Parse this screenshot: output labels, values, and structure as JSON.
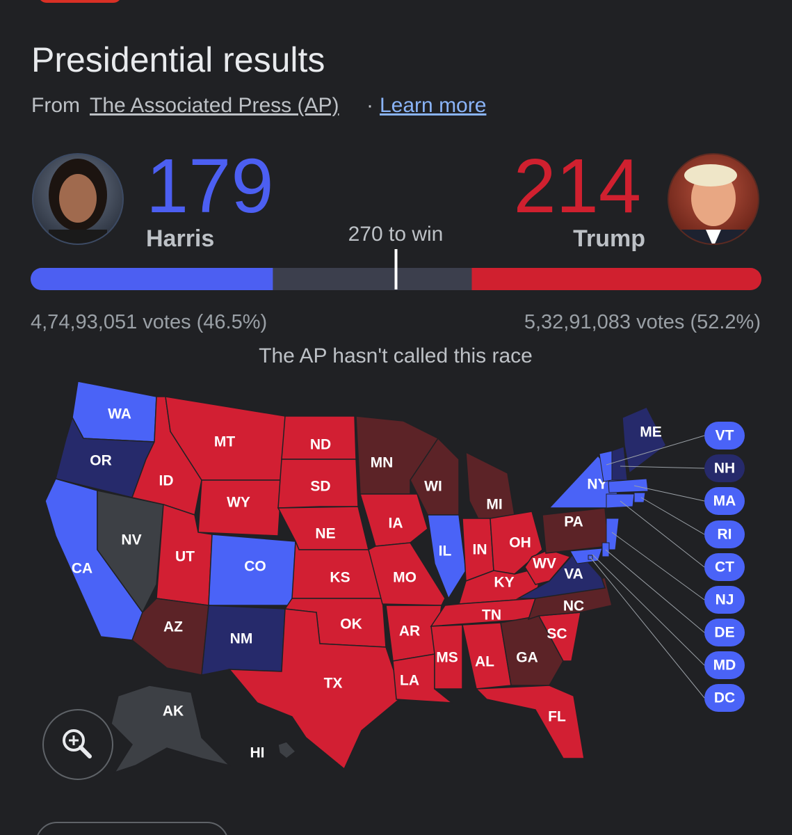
{
  "header": {
    "title": "Presidential results",
    "source_prefix": "From",
    "source": "The Associated Press (AP)",
    "separator": "·",
    "learn_more": "Learn more"
  },
  "candidates": [
    {
      "name": "Harris",
      "electoral_votes": 179,
      "votes": "4,74,93,051 votes (46.5%)",
      "color": "#4c5ff2"
    },
    {
      "name": "Trump",
      "electoral_votes": 214,
      "votes": "5,32,91,083 votes (52.2%)",
      "color": "#d0202f"
    }
  ],
  "threshold": {
    "value": 270,
    "label": "270 to win"
  },
  "status": "The AP hasn't called this race",
  "map": {
    "states": [
      {
        "label": "WA",
        "color": "#4a63f7"
      },
      {
        "label": "OR",
        "color": "#262a6b"
      },
      {
        "label": "CA",
        "color": "#4a63f7"
      },
      {
        "label": "NV",
        "color": "#3d4045"
      },
      {
        "label": "ID",
        "color": "#d21f33"
      },
      {
        "label": "MT",
        "color": "#d21f33"
      },
      {
        "label": "WY",
        "color": "#d21f33"
      },
      {
        "label": "UT",
        "color": "#d21f33"
      },
      {
        "label": "CO",
        "color": "#4a63f7"
      },
      {
        "label": "AZ",
        "color": "#5c2327"
      },
      {
        "label": "NM",
        "color": "#262a6b"
      },
      {
        "label": "ND",
        "color": "#d21f33"
      },
      {
        "label": "SD",
        "color": "#d21f33"
      },
      {
        "label": "NE",
        "color": "#d21f33"
      },
      {
        "label": "KS",
        "color": "#d21f33"
      },
      {
        "label": "OK",
        "color": "#d21f33"
      },
      {
        "label": "TX",
        "color": "#d21f33"
      },
      {
        "label": "MN",
        "color": "#5c2327"
      },
      {
        "label": "IA",
        "color": "#d21f33"
      },
      {
        "label": "MO",
        "color": "#d21f33"
      },
      {
        "label": "AR",
        "color": "#d21f33"
      },
      {
        "label": "LA",
        "color": "#d21f33"
      },
      {
        "label": "WI",
        "color": "#5c2327"
      },
      {
        "label": "IL",
        "color": "#4a63f7"
      },
      {
        "label": "MI",
        "color": "#5c2327"
      },
      {
        "label": "IN",
        "color": "#d21f33"
      },
      {
        "label": "OH",
        "color": "#d21f33"
      },
      {
        "label": "KY",
        "color": "#d21f33"
      },
      {
        "label": "TN",
        "color": "#d21f33"
      },
      {
        "label": "MS",
        "color": "#d21f33"
      },
      {
        "label": "AL",
        "color": "#d21f33"
      },
      {
        "label": "GA",
        "color": "#5c2327"
      },
      {
        "label": "FL",
        "color": "#d21f33"
      },
      {
        "label": "SC",
        "color": "#d21f33"
      },
      {
        "label": "NC",
        "color": "#5c2327"
      },
      {
        "label": "VA",
        "color": "#262a6b"
      },
      {
        "label": "WV",
        "color": "#d21f33"
      },
      {
        "label": "PA",
        "color": "#5c2327"
      },
      {
        "label": "NY",
        "color": "#4a63f7"
      },
      {
        "label": "ME",
        "color": "#262a6b"
      },
      {
        "label": "AK",
        "color": "#3d4045"
      },
      {
        "label": "HI",
        "color": "#3d4045"
      }
    ],
    "callouts": [
      {
        "label": "VT",
        "color": "#4a63f7"
      },
      {
        "label": "NH",
        "color": "#262a6b"
      },
      {
        "label": "MA",
        "color": "#4a63f7"
      },
      {
        "label": "RI",
        "color": "#4a63f7"
      },
      {
        "label": "CT",
        "color": "#4a63f7"
      },
      {
        "label": "NJ",
        "color": "#4a63f7"
      },
      {
        "label": "DE",
        "color": "#4a63f7"
      },
      {
        "label": "MD",
        "color": "#4a63f7"
      },
      {
        "label": "DC",
        "color": "#4a63f7"
      }
    ]
  }
}
